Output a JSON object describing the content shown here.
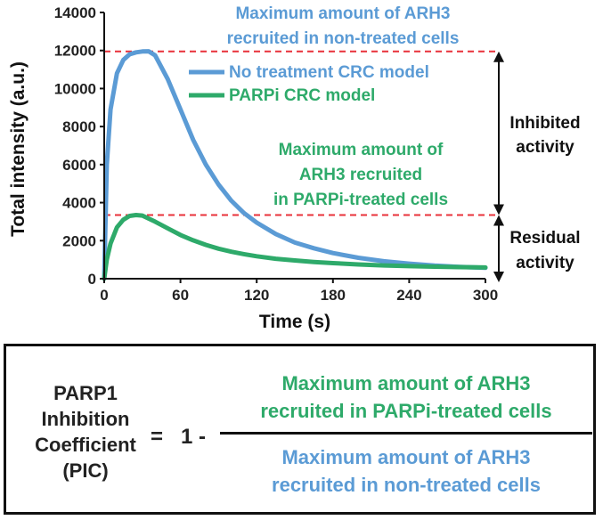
{
  "chart_data": {
    "type": "line",
    "xlabel": "Time (s)",
    "ylabel": "Total intensity (a.u.)",
    "xlim": [
      0,
      300
    ],
    "ylim": [
      0,
      14000
    ],
    "xticks": [
      0,
      60,
      120,
      180,
      240,
      300
    ],
    "yticks": [
      0,
      2000,
      4000,
      6000,
      8000,
      10000,
      12000,
      14000
    ],
    "grid": false,
    "legend_position": "top-right",
    "series": [
      {
        "name": "No treatment CRC model",
        "color": "#5b9bd5",
        "x": [
          0,
          2,
          5,
          10,
          15,
          20,
          25,
          30,
          35,
          40,
          50,
          60,
          70,
          80,
          90,
          100,
          110,
          120,
          135,
          150,
          165,
          180,
          200,
          220,
          240,
          260,
          280,
          300
        ],
        "y": [
          0,
          6000,
          8900,
          10800,
          11500,
          11800,
          11900,
          11950,
          11960,
          11750,
          10500,
          8900,
          7300,
          6000,
          4950,
          4100,
          3450,
          2950,
          2350,
          1900,
          1600,
          1350,
          1100,
          920,
          790,
          690,
          620,
          570
        ]
      },
      {
        "name": "PARPi CRC model",
        "color": "#2eaa6a",
        "x": [
          0,
          2,
          5,
          10,
          15,
          20,
          25,
          30,
          40,
          50,
          60,
          70,
          80,
          90,
          100,
          110,
          120,
          135,
          150,
          165,
          180,
          200,
          220,
          240,
          260,
          280,
          300
        ],
        "y": [
          0,
          1000,
          1850,
          2700,
          3100,
          3300,
          3350,
          3320,
          3000,
          2650,
          2300,
          2020,
          1780,
          1580,
          1420,
          1290,
          1180,
          1050,
          960,
          880,
          820,
          750,
          700,
          660,
          630,
          610,
          590
        ]
      }
    ],
    "reference_lines": [
      {
        "y": 11950,
        "color": "#e8313a",
        "style": "dashed"
      },
      {
        "y": 3350,
        "color": "#e8313a",
        "style": "dashed"
      }
    ],
    "annotations": {
      "max_no_treatment": [
        "Maximum amount of ARH3",
        "recruited in non-treated cells"
      ],
      "max_parpi": [
        "Maximum amount of",
        "ARH3 recruited",
        "in PARPi-treated cells"
      ],
      "inhibited": [
        "Inhibited",
        "activity"
      ],
      "residual": [
        "Residual",
        "activity"
      ]
    }
  },
  "formula": {
    "label_lines": [
      "PARP1",
      "Inhibition",
      "Coefficient",
      "(PIC)"
    ],
    "equals": "=",
    "one_minus": "1 -",
    "numerator_lines": [
      "Maximum amount of ARH3",
      "recruited in PARPi-treated cells"
    ],
    "denominator_lines": [
      "Maximum amount of ARH3",
      "recruited in non-treated cells"
    ]
  },
  "colors": {
    "blue": "#5b9bd5",
    "green": "#2eaa6a",
    "red_dashed": "#e8313a",
    "axis": "#111111"
  }
}
